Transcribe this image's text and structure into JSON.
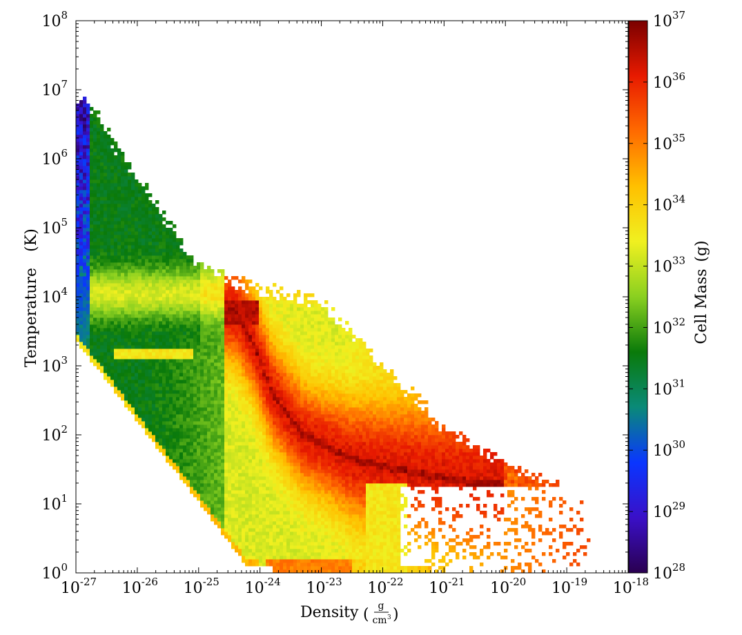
{
  "chart_data": {
    "type": "heatmap",
    "xlabel": "Density",
    "xunit_num": "g",
    "xunit_den": "cm",
    "xunit_den_exp": "3",
    "ylabel": "Temperature",
    "yunit": "(K)",
    "colorbar_label": "Cell Mass",
    "colorbar_unit": "(g)",
    "x_scale": "log",
    "y_scale": "log",
    "color_scale": "log",
    "xlim": [
      1e-27,
      1e-18
    ],
    "ylim": [
      1,
      100000000.0
    ],
    "clim": [
      1e+28,
      1e+37
    ],
    "x_ticks": [
      {
        "base": "10",
        "exp": "-27"
      },
      {
        "base": "10",
        "exp": "-26"
      },
      {
        "base": "10",
        "exp": "-25"
      },
      {
        "base": "10",
        "exp": "-24"
      },
      {
        "base": "10",
        "exp": "-23"
      },
      {
        "base": "10",
        "exp": "-22"
      },
      {
        "base": "10",
        "exp": "-21"
      },
      {
        "base": "10",
        "exp": "-20"
      },
      {
        "base": "10",
        "exp": "-19"
      },
      {
        "base": "10",
        "exp": "-18"
      }
    ],
    "y_ticks": [
      {
        "base": "10",
        "exp": "0"
      },
      {
        "base": "10",
        "exp": "1"
      },
      {
        "base": "10",
        "exp": "2"
      },
      {
        "base": "10",
        "exp": "3"
      },
      {
        "base": "10",
        "exp": "4"
      },
      {
        "base": "10",
        "exp": "5"
      },
      {
        "base": "10",
        "exp": "6"
      },
      {
        "base": "10",
        "exp": "7"
      },
      {
        "base": "10",
        "exp": "8"
      }
    ],
    "colorbar_ticks": [
      {
        "base": "10",
        "exp": "28"
      },
      {
        "base": "10",
        "exp": "29"
      },
      {
        "base": "10",
        "exp": "30"
      },
      {
        "base": "10",
        "exp": "31"
      },
      {
        "base": "10",
        "exp": "32"
      },
      {
        "base": "10",
        "exp": "33"
      },
      {
        "base": "10",
        "exp": "34"
      },
      {
        "base": "10",
        "exp": "35"
      },
      {
        "base": "10",
        "exp": "36"
      },
      {
        "base": "10",
        "exp": "37"
      }
    ],
    "colormap": [
      "#2a0050",
      "#3a10c8",
      "#0a36ff",
      "#0a8a78",
      "#0a7a0a",
      "#8ad020",
      "#f0f020",
      "#ffc000",
      "#ff6a00",
      "#e81a00",
      "#7a0000"
    ],
    "distribution": {
      "description_note": "",
      "components": [
        {
          "kind": "hot_halo",
          "logrho_range": [
            -27.0,
            -25.5
          ],
          "logT_range": [
            4.0,
            6.9
          ],
          "log_mass": 29.5
        },
        {
          "kind": "warm_plateau",
          "logrho_range": [
            -26.5,
            -22.3
          ],
          "logT_center": 4.05,
          "log_mass": 33.2
        },
        {
          "kind": "cooling_ridge",
          "logrho_logT_points": [
            [
              -24.4,
              3.8
            ],
            [
              -24.1,
              3.3
            ],
            [
              -23.8,
              2.6
            ],
            [
              -23.3,
              2.0
            ],
            [
              -22.5,
              1.65
            ],
            [
              -21.5,
              1.45
            ],
            [
              -20.5,
              1.3
            ]
          ],
          "log_mass": 36.8
        },
        {
          "kind": "adiabatic_floor_edge",
          "logrho_logT_points": [
            [
              -27.0,
              3.4
            ],
            [
              -24.2,
              0.12
            ]
          ],
          "log_mass": 34.0
        },
        {
          "kind": "floor",
          "logrho_range": [
            -23.8,
            -21.2
          ],
          "logT_center": 0.05,
          "log_mass": 34.6
        },
        {
          "kind": "isolated_warm_band",
          "logrho_range": [
            -26.4,
            -25.1
          ],
          "logT_center": 3.18,
          "log_mass": 33.6
        },
        {
          "kind": "dense_tail",
          "logrho_range": [
            -21.5,
            -18.6
          ],
          "logT_range": [
            0.0,
            1.3
          ],
          "log_mass": 35.5
        }
      ]
    }
  }
}
